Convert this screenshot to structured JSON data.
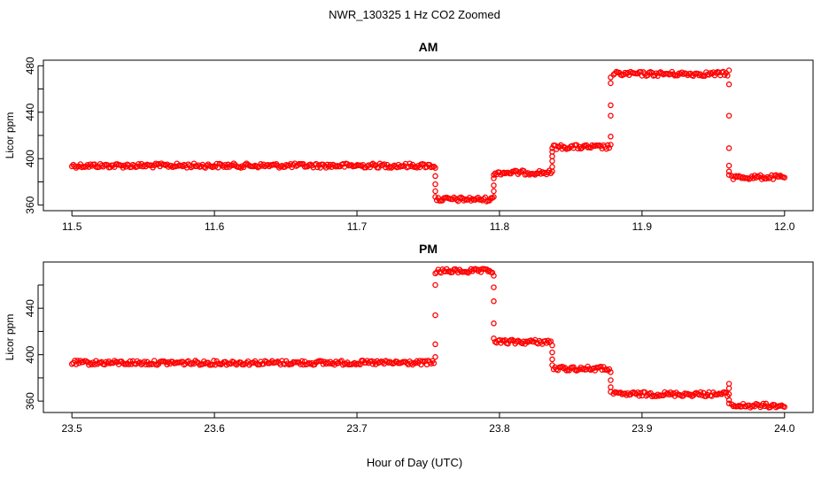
{
  "figure": {
    "title": "NWR_130325  1 Hz CO2 Zoomed",
    "xlabel": "Hour of Day (UTC)"
  },
  "chart_data": [
    {
      "type": "scatter",
      "title": "AM",
      "xlabel": "Hour of Day (UTC)",
      "ylabel": "Licor ppm",
      "xlim": [
        11.5,
        12.0
      ],
      "ylim": [
        360,
        480
      ],
      "xticks": [
        11.5,
        11.6,
        11.7,
        11.8,
        11.9,
        12.0
      ],
      "xtick_labels": [
        "11.5",
        "11.6",
        "11.7",
        "11.8",
        "11.9",
        "12.0"
      ],
      "yticks": [
        360,
        380,
        400,
        420,
        440,
        460,
        480
      ],
      "ytick_labels": [
        "360",
        "",
        "400",
        "",
        "440",
        "",
        "480"
      ],
      "color": "#ff0000",
      "marker": "open-circle",
      "segments": [
        {
          "x": [
            11.5,
            11.754
          ],
          "y": 394
        },
        {
          "x": [
            11.756,
            11.795
          ],
          "y": 365
        },
        {
          "x": [
            11.797,
            11.836
          ],
          "y": 388
        },
        {
          "x": [
            11.838,
            11.877
          ],
          "y": 410
        },
        {
          "x": [
            11.88,
            11.96
          ],
          "y": 473
        },
        {
          "x": [
            11.963,
            12.0
          ],
          "y": 384
        }
      ],
      "transitions": [
        {
          "x": 11.755,
          "y": [
            392,
            385,
            378,
            372,
            367
          ]
        },
        {
          "x": 11.796,
          "y": [
            367,
            372,
            377,
            383,
            386
          ]
        },
        {
          "x": 11.837,
          "y": [
            389,
            393,
            398,
            402,
            406,
            409
          ]
        },
        {
          "x": 11.878,
          "y": [
            412,
            419,
            437,
            446,
            465,
            470
          ]
        },
        {
          "x": 11.961,
          "y": [
            476,
            464,
            437,
            409,
            394,
            389,
            386
          ]
        }
      ]
    },
    {
      "type": "scatter",
      "title": "PM",
      "xlabel": "Hour of Day (UTC)",
      "ylabel": "Licor ppm",
      "xlim": [
        23.5,
        24.0
      ],
      "ylim": [
        355,
        475
      ],
      "xticks": [
        23.5,
        23.6,
        23.7,
        23.8,
        23.9,
        24.0
      ],
      "xtick_labels": [
        "23.5",
        "23.6",
        "23.7",
        "23.8",
        "23.9",
        "24.0"
      ],
      "yticks": [
        360,
        380,
        400,
        420,
        440,
        460
      ],
      "ytick_labels": [
        "360",
        "",
        "400",
        "",
        "440",
        ""
      ],
      "color": "#ff0000",
      "marker": "open-circle",
      "segments": [
        {
          "x": [
            23.5,
            23.754
          ],
          "y": 393
        },
        {
          "x": [
            23.756,
            23.795
          ],
          "y": 472
        },
        {
          "x": [
            23.797,
            23.836
          ],
          "y": 411
        },
        {
          "x": [
            23.838,
            23.877
          ],
          "y": 388
        },
        {
          "x": [
            23.88,
            23.96
          ],
          "y": 366
        },
        {
          "x": [
            23.963,
            24.0
          ],
          "y": 356
        }
      ],
      "transitions": [
        {
          "x": 23.755,
          "y": [
            398,
            409,
            434,
            460,
            470
          ]
        },
        {
          "x": 23.796,
          "y": [
            468,
            458,
            446,
            427,
            414
          ]
        },
        {
          "x": 23.837,
          "y": [
            408,
            402,
            396,
            391
          ]
        },
        {
          "x": 23.878,
          "y": [
            385,
            378,
            372,
            368
          ]
        },
        {
          "x": 23.961,
          "y": [
            375,
            371,
            366,
            361,
            358
          ]
        }
      ]
    }
  ]
}
